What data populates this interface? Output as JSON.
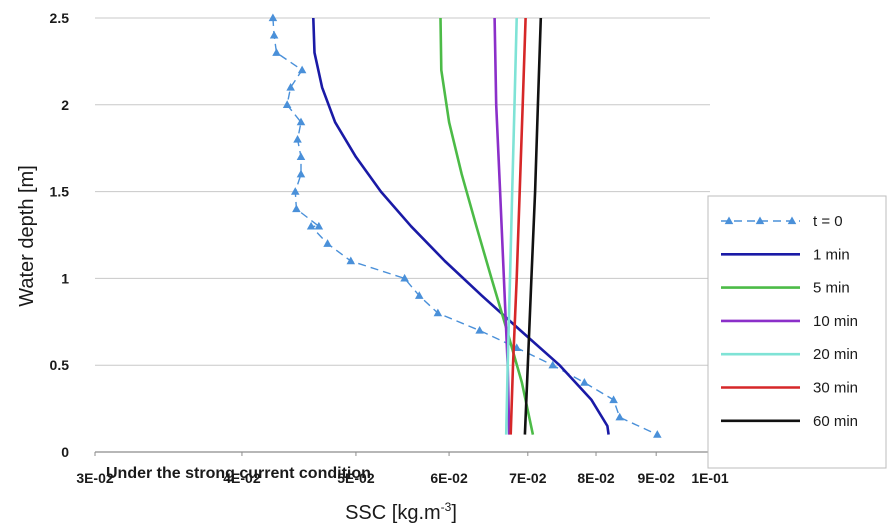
{
  "chart_data": {
    "type": "line",
    "xlabel": "SSC [kg.m",
    "xlabel_sup": "-3",
    "xlabel_close": "]",
    "ylabel": "Water depth [m]",
    "x_scale": "log",
    "xlim": [
      0.03,
      0.1
    ],
    "ylim": [
      0,
      2.5
    ],
    "x_ticks": [
      0.03,
      0.04,
      0.05,
      0.06,
      0.07,
      0.08,
      0.09,
      0.1
    ],
    "x_tick_labels": [
      "3E-02",
      "4E-02",
      "5E-02",
      "6E-02",
      "7E-02",
      "8E-02",
      "9E-02",
      "1E-01"
    ],
    "y_ticks": [
      0,
      0.5,
      1,
      1.5,
      2,
      2.5
    ],
    "y_tick_labels": [
      "0",
      "0.5",
      "1",
      "1.5",
      "2",
      "2.5"
    ],
    "grid": "horizontal",
    "legend_position": "right",
    "annotation": "Under the strong current condition",
    "series": [
      {
        "name": "t = 0",
        "color": "#4a90d9",
        "style": "dashed-triangle",
        "points": [
          [
            0.0425,
            2.5
          ],
          [
            0.0426,
            2.4
          ],
          [
            0.0428,
            2.3
          ],
          [
            0.045,
            2.2
          ],
          [
            0.044,
            2.1
          ],
          [
            0.0437,
            2.0
          ],
          [
            0.0449,
            1.9
          ],
          [
            0.0446,
            1.8
          ],
          [
            0.0449,
            1.7
          ],
          [
            0.0449,
            1.6
          ],
          [
            0.0444,
            1.5
          ],
          [
            0.0445,
            1.4
          ],
          [
            0.0465,
            1.3
          ],
          [
            0.0458,
            1.3
          ],
          [
            0.0473,
            1.2
          ],
          [
            0.0495,
            1.1
          ],
          [
            0.055,
            1.0
          ],
          [
            0.0566,
            0.9
          ],
          [
            0.0587,
            0.8
          ],
          [
            0.0637,
            0.7
          ],
          [
            0.0685,
            0.6
          ],
          [
            0.0735,
            0.5
          ],
          [
            0.0782,
            0.4
          ],
          [
            0.0828,
            0.3
          ],
          [
            0.0838,
            0.2
          ],
          [
            0.0902,
            0.1
          ]
        ]
      },
      {
        "name": "1 min",
        "color": "#1a1aa6",
        "style": "solid",
        "points": [
          [
            0.046,
            2.5
          ],
          [
            0.0461,
            2.3
          ],
          [
            0.0468,
            2.1
          ],
          [
            0.048,
            1.9
          ],
          [
            0.05,
            1.7
          ],
          [
            0.0525,
            1.5
          ],
          [
            0.0557,
            1.3
          ],
          [
            0.0595,
            1.1
          ],
          [
            0.064,
            0.9
          ],
          [
            0.069,
            0.7
          ],
          [
            0.0745,
            0.5
          ],
          [
            0.0793,
            0.3
          ],
          [
            0.0818,
            0.15
          ],
          [
            0.082,
            0.1
          ]
        ]
      },
      {
        "name": "5 min",
        "color": "#4cbb47",
        "style": "solid",
        "points": [
          [
            0.059,
            2.5
          ],
          [
            0.0591,
            2.2
          ],
          [
            0.06,
            1.9
          ],
          [
            0.0615,
            1.6
          ],
          [
            0.0633,
            1.3
          ],
          [
            0.0652,
            1.0
          ],
          [
            0.0672,
            0.7
          ],
          [
            0.0692,
            0.4
          ],
          [
            0.0707,
            0.1
          ]
        ]
      },
      {
        "name": "10 min",
        "color": "#8b2fc9",
        "style": "solid",
        "points": [
          [
            0.0656,
            2.5
          ],
          [
            0.0658,
            2.0
          ],
          [
            0.0663,
            1.5
          ],
          [
            0.0668,
            1.0
          ],
          [
            0.0673,
            0.5
          ],
          [
            0.0675,
            0.1
          ]
        ]
      },
      {
        "name": "20 min",
        "color": "#7fe3d6",
        "style": "solid",
        "points": [
          [
            0.0685,
            2.5
          ],
          [
            0.0682,
            2.0
          ],
          [
            0.0679,
            1.5
          ],
          [
            0.0676,
            1.0
          ],
          [
            0.0673,
            0.5
          ],
          [
            0.0671,
            0.1
          ]
        ]
      },
      {
        "name": "30 min",
        "color": "#d62728",
        "style": "solid",
        "points": [
          [
            0.0697,
            2.5
          ],
          [
            0.0693,
            2.0
          ],
          [
            0.0689,
            1.5
          ],
          [
            0.0685,
            1.0
          ],
          [
            0.068,
            0.5
          ],
          [
            0.0677,
            0.1
          ]
        ]
      },
      {
        "name": "60 min",
        "color": "#111111",
        "style": "solid",
        "points": [
          [
            0.0718,
            2.5
          ],
          [
            0.0714,
            2.0
          ],
          [
            0.071,
            1.5
          ],
          [
            0.0705,
            1.0
          ],
          [
            0.07,
            0.5
          ],
          [
            0.0696,
            0.1
          ]
        ]
      }
    ]
  }
}
